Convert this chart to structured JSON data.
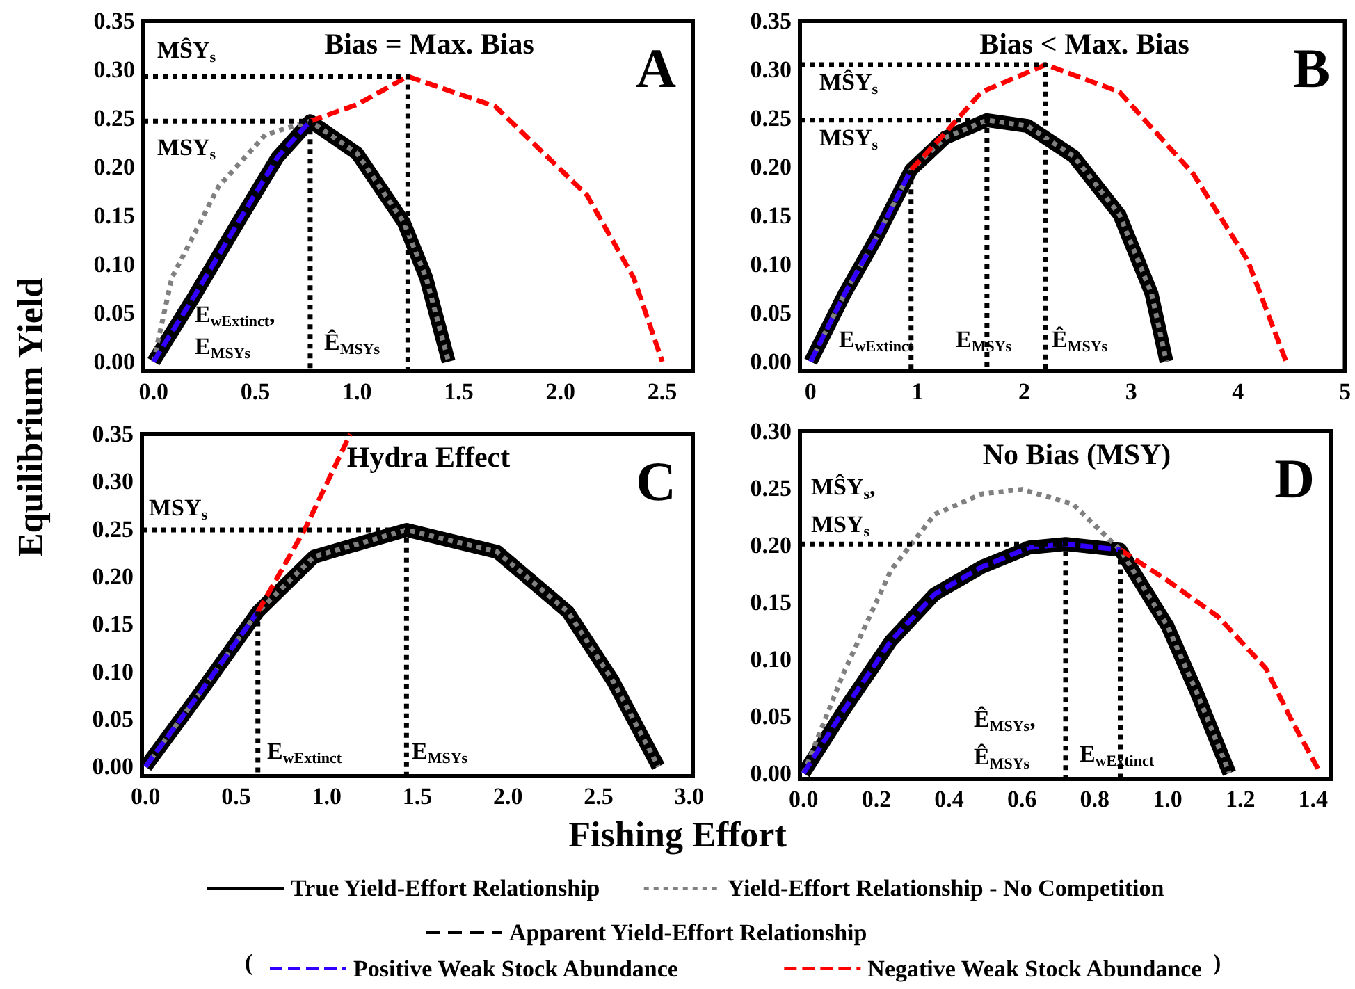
{
  "chart_data": [
    {
      "type": "line",
      "title": "Bias = Max. Bias",
      "subtitle": "A",
      "ylabel": "Equilibrium Yield",
      "marker": "none",
      "xlim": [
        -0.05,
        2.65
      ],
      "xticks": [
        {
          "value": 0,
          "label": "0.0"
        },
        0.5,
        {
          "value": 1,
          "label": "1.0"
        },
        1.5,
        {
          "value": 2,
          "label": "2.0"
        },
        2.5
      ],
      "ylim": [
        -0.01,
        0.35
      ],
      "yticks": [
        {
          "value": 0,
          "label": "0.00"
        },
        0.05,
        {
          "value": 0.1,
          "label": "0.10"
        },
        0.15,
        {
          "value": 0.2,
          "label": "0.20"
        },
        0.25,
        {
          "value": 0.3,
          "label": "0.30"
        },
        0.35
      ],
      "annotations": [
        "MŜY$_{s}$",
        "MSY$_{s}$",
        "E$_{wExtinct}$,",
        "E$_{MSYs}$",
        "Ê$_{MSYs}$"
      ],
      "series": [
        {
          "color": "#000000",
          "line_style": "solid",
          "x": [
            0,
            0.2,
            0.43,
            0.61,
            0.77,
            1.0,
            1.23,
            1.34,
            1.45
          ],
          "values": [
            0,
            0.067,
            0.148,
            0.21,
            0.247,
            0.214,
            0.143,
            0.086,
            0
          ]
        },
        {
          "color": "#808080",
          "line_style": "dotted",
          "x": [
            0,
            0.09,
            0.32,
            0.55,
            0.77,
            1.0,
            1.23,
            1.34,
            1.45
          ],
          "values": [
            0,
            0.086,
            0.18,
            0.233,
            0.247,
            0.214,
            0.143,
            0.086,
            0
          ]
        },
        {
          "color": "#3300ff",
          "line_style": "dashed",
          "x": [
            0,
            0.2,
            0.43,
            0.61,
            0.77
          ],
          "values": [
            0,
            0.067,
            0.148,
            0.21,
            0.247
          ]
        },
        {
          "color": "#ff0000",
          "line_style": "dashed",
          "x": [
            0.77,
            1.0,
            1.25,
            1.68,
            2.13,
            2.36,
            2.5
          ],
          "values": [
            0.247,
            0.264,
            0.293,
            0.262,
            0.171,
            0.086,
            0
          ]
        },
        {
          "color": "#000000",
          "line_style": "dotted",
          "x": [
            -0.05,
            0.77,
            0.77
          ],
          "values": [
            0.247,
            0.247,
            -0.01
          ]
        },
        {
          "color": "#000000",
          "line_style": "dotted",
          "x": [
            -0.05,
            1.25,
            1.25
          ],
          "values": [
            0.293,
            0.293,
            -0.01
          ]
        }
      ]
    },
    {
      "type": "line",
      "title": "Bias < Max. Bias",
      "subtitle": "B",
      "marker": "none",
      "xlim": [
        -0.1,
        5
      ],
      "xticks": [
        0,
        1,
        2,
        3,
        4,
        5
      ],
      "ylim": [
        -0.01,
        0.35
      ],
      "yticks": [
        {
          "value": 0,
          "label": "0.00"
        },
        0.05,
        {
          "value": 0.1,
          "label": "0.10"
        },
        0.15,
        {
          "value": 0.2,
          "label": "0.20"
        },
        0.25,
        {
          "value": 0.3,
          "label": "0.30"
        },
        0.35
      ],
      "annotations": [
        "MŜY$_{s}$",
        "MSY$_{s}$",
        "E$_{wExtinct}$",
        "E$_{MSYs}$",
        "Ê$_{MSYs}$"
      ],
      "series": [
        {
          "color": "#000000",
          "line_style": "solid",
          "x": [
            0,
            0.32,
            0.62,
            0.94,
            1.26,
            1.65,
            2.03,
            2.46,
            2.89,
            3.19,
            3.33
          ],
          "values": [
            0,
            0.07,
            0.128,
            0.197,
            0.23,
            0.248,
            0.242,
            0.211,
            0.151,
            0.07,
            0
          ]
        },
        {
          "color": "#808080",
          "line_style": "dotted",
          "x": [
            0,
            0.32,
            0.62,
            0.94,
            1.26,
            1.65,
            2.03,
            2.46,
            2.89,
            3.19,
            3.33
          ],
          "values": [
            0,
            0.07,
            0.128,
            0.197,
            0.23,
            0.248,
            0.242,
            0.211,
            0.151,
            0.07,
            0
          ]
        },
        {
          "color": "#3300ff",
          "line_style": "dashed",
          "x": [
            0,
            0.32,
            0.62,
            0.94
          ],
          "values": [
            0,
            0.07,
            0.128,
            0.197
          ]
        },
        {
          "color": "#ff0000",
          "line_style": "dashed",
          "x": [
            0.94,
            1.26,
            1.6,
            2.2,
            2.89,
            3.58,
            4.09,
            4.45
          ],
          "values": [
            0.197,
            0.235,
            0.277,
            0.305,
            0.277,
            0.193,
            0.104,
            0
          ]
        },
        {
          "color": "#000000",
          "line_style": "dotted",
          "x": [
            -0.1,
            1.65,
            1.65
          ],
          "values": [
            0.248,
            0.248,
            -0.01
          ]
        },
        {
          "color": "#000000",
          "line_style": "dotted",
          "x": [
            -0.1,
            2.2,
            2.2
          ],
          "values": [
            0.305,
            0.305,
            -0.01
          ]
        },
        {
          "color": "#000000",
          "line_style": "dotted",
          "x": [
            0.94,
            0.94
          ],
          "values": [
            0.197,
            -0.01
          ]
        }
      ]
    },
    {
      "type": "line",
      "title": "Hydra Effect",
      "subtitle": "C",
      "marker": "none",
      "xlim": [
        -0.02,
        3.02
      ],
      "xticks": [
        {
          "value": 0,
          "label": "0.0"
        },
        0.5,
        {
          "value": 1,
          "label": "1.0"
        },
        1.5,
        {
          "value": 2,
          "label": "2.0"
        },
        2.5,
        {
          "value": 3,
          "label": "3.0"
        }
      ],
      "ylim": [
        -0.01,
        0.35
      ],
      "yticks": [
        {
          "value": 0,
          "label": "0.00"
        },
        0.05,
        {
          "value": 0.1,
          "label": "0.10"
        },
        0.15,
        {
          "value": 0.2,
          "label": "0.20"
        },
        0.25,
        {
          "value": 0.3,
          "label": "0.30"
        },
        0.35
      ],
      "annotations": [
        "MSY$_{s}$",
        "E$_{wExtinct}$",
        "E$_{MSYs}$"
      ],
      "series": [
        {
          "color": "#000000",
          "line_style": "solid",
          "x": [
            0,
            0.29,
            0.62,
            0.93,
            1.44,
            1.94,
            2.33,
            2.58,
            2.83
          ],
          "values": [
            0,
            0.075,
            0.163,
            0.221,
            0.249,
            0.226,
            0.163,
            0.09,
            0
          ]
        },
        {
          "color": "#808080",
          "line_style": "dotted",
          "x": [
            0,
            0.29,
            0.62,
            0.93,
            1.44,
            1.94,
            2.33,
            2.58,
            2.83
          ],
          "values": [
            0,
            0.075,
            0.163,
            0.221,
            0.249,
            0.226,
            0.163,
            0.09,
            0
          ]
        },
        {
          "color": "#3300ff",
          "line_style": "dashed",
          "x": [
            0,
            0.29,
            0.62
          ],
          "values": [
            0,
            0.075,
            0.163
          ]
        },
        {
          "color": "#ff0000",
          "line_style": "dashed",
          "x": [
            0.62,
            0.88,
            1.13
          ],
          "values": [
            0.163,
            0.25,
            0.35
          ]
        },
        {
          "color": "#000000",
          "line_style": "dotted",
          "x": [
            -0.02,
            1.44,
            1.44
          ],
          "values": [
            0.249,
            0.249,
            -0.01
          ]
        },
        {
          "color": "#000000",
          "line_style": "dotted",
          "x": [
            0.62,
            0.62
          ],
          "values": [
            0.163,
            -0.01
          ]
        }
      ]
    },
    {
      "type": "line",
      "title": "No Bias (MSY)",
      "subtitle": "D",
      "xlabel": "Fishing Effort",
      "marker": "none",
      "legend": "bottom",
      "legend_title": "Apparent Yield-Effort Relationship",
      "xlim": [
        -0.01,
        1.45
      ],
      "xticks": [
        {
          "value": 0,
          "label": "0.0"
        },
        0.2,
        0.4,
        0.6,
        0.8,
        {
          "value": 1,
          "label": "1.0"
        },
        1.2,
        1.4
      ],
      "ylim": [
        -0.005,
        0.3
      ],
      "yticks": [
        {
          "value": 0,
          "label": "0.00"
        },
        0.05,
        {
          "value": 0.1,
          "label": "0.10"
        },
        0.15,
        {
          "value": 0.2,
          "label": "0.20"
        },
        0.25,
        {
          "value": 0.3,
          "label": "0.30"
        }
      ],
      "annotations": [
        "MŜY$_{s}$,",
        "MSY$_{s}$",
        "Ê$_{MSYs}$,",
        "Ê$_{MSYs}$",
        "E$_{wExtinct}$",
        "(",
        ")"
      ],
      "series": [
        {
          "name": "True Yield-Effort Relationship",
          "color": "#000000",
          "line_style": "solid",
          "x": [
            0,
            0.11,
            0.24,
            0.36,
            0.49,
            0.62,
            0.72,
            0.87,
            1.0,
            1.08,
            1.17
          ],
          "values": [
            0,
            0.055,
            0.116,
            0.157,
            0.181,
            0.198,
            0.201,
            0.196,
            0.129,
            0.071,
            0
          ]
        },
        {
          "name": "Yield-Effort Relationship - No Competition",
          "color": "#808080",
          "line_style": "dotted",
          "x": [
            0,
            0.11,
            0.24,
            0.36,
            0.49,
            0.6,
            0.74,
            0.87,
            1.0,
            1.08,
            1.17
          ],
          "values": [
            0,
            0.088,
            0.178,
            0.227,
            0.245,
            0.249,
            0.236,
            0.196,
            0.129,
            0.071,
            0
          ]
        },
        {
          "name": "Positive Weak Stock Abundance",
          "color": "#3300ff",
          "line_style": "dashed",
          "x": [
            0,
            0.11,
            0.24,
            0.36,
            0.49,
            0.62,
            0.72,
            0.87
          ],
          "values": [
            0,
            0.055,
            0.116,
            0.157,
            0.181,
            0.198,
            0.201,
            0.196
          ]
        },
        {
          "name": "Negative Weak Stock Abundance",
          "color": "#ff0000",
          "line_style": "dashed",
          "x": [
            0.87,
            1.0,
            1.14,
            1.27,
            1.34,
            1.42
          ],
          "values": [
            0.196,
            0.169,
            0.137,
            0.092,
            0.047,
            0
          ]
        },
        {
          "color": "#000000",
          "line_style": "dotted",
          "x": [
            -0.01,
            0.72,
            0.72
          ],
          "values": [
            0.201,
            0.201,
            -0.005
          ]
        },
        {
          "color": "#000000",
          "line_style": "dotted",
          "x": [
            0.87,
            0.87
          ],
          "values": [
            0.196,
            -0.005
          ]
        }
      ]
    }
  ]
}
